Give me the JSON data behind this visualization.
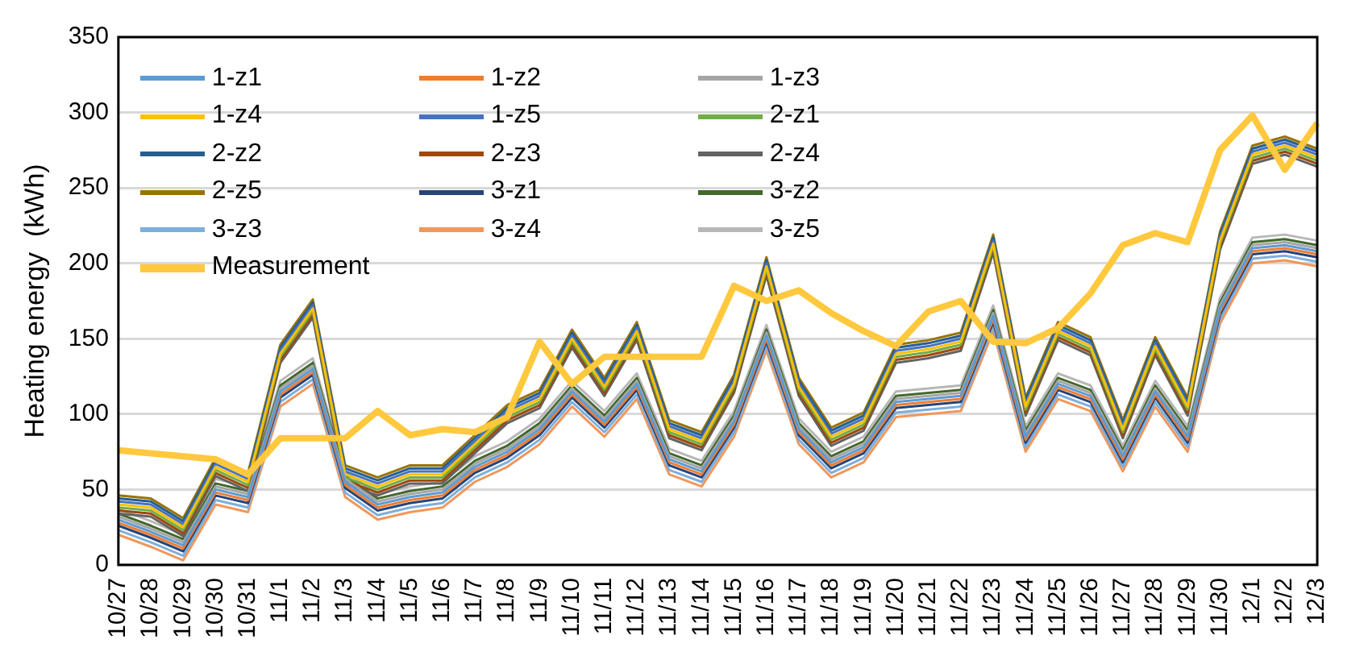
{
  "chart_data": {
    "type": "line",
    "ylabel": "Heating energy  (kWh)",
    "categories": [
      "10/27",
      "10/28",
      "10/29",
      "10/30",
      "10/31",
      "11/1",
      "11/2",
      "11/3",
      "11/4",
      "11/5",
      "11/6",
      "11/7",
      "11/8",
      "11/9",
      "11/10",
      "11/11",
      "11/12",
      "11/13",
      "11/14",
      "11/15",
      "11/16",
      "11/17",
      "11/18",
      "11/19",
      "11/20",
      "11/21",
      "11/22",
      "11/23",
      "11/24",
      "11/25",
      "11/26",
      "11/27",
      "11/28",
      "11/29",
      "11/30",
      "12/1",
      "12/2",
      "12/3"
    ],
    "series": [
      {
        "name": "1-z1",
        "color": "#5b9bd5",
        "values": [
          30,
          22,
          13,
          50,
          45,
          115,
          130,
          55,
          40,
          45,
          48,
          65,
          75,
          90,
          115,
          95,
          120,
          70,
          62,
          95,
          152,
          90,
          68,
          78,
          108,
          110,
          112,
          165,
          85,
          120,
          112,
          72,
          115,
          85,
          170,
          210,
          212,
          208
        ]
      },
      {
        "name": "1-z2",
        "color": "#ed7d31",
        "values": [
          28,
          20,
          11,
          48,
          43,
          113,
          128,
          53,
          38,
          43,
          46,
          63,
          73,
          88,
          113,
          93,
          118,
          68,
          60,
          93,
          150,
          88,
          66,
          76,
          106,
          108,
          110,
          163,
          83,
          118,
          110,
          70,
          113,
          83,
          168,
          208,
          210,
          206
        ]
      },
      {
        "name": "1-z3",
        "color": "#a5a5a5",
        "values": [
          32,
          24,
          15,
          52,
          47,
          117,
          132,
          57,
          42,
          47,
          50,
          67,
          77,
          92,
          117,
          97,
          122,
          72,
          64,
          97,
          154,
          92,
          70,
          80,
          110,
          112,
          114,
          167,
          87,
          122,
          114,
          74,
          117,
          87,
          172,
          212,
          214,
          210
        ]
      },
      {
        "name": "1-z4",
        "color": "#ffc000",
        "values": [
          40,
          38,
          25,
          65,
          55,
          140,
          170,
          60,
          52,
          60,
          60,
          80,
          100,
          110,
          150,
          118,
          155,
          90,
          82,
          120,
          198,
          118,
          85,
          95,
          140,
          143,
          148,
          213,
          105,
          155,
          145,
          90,
          145,
          105,
          215,
          272,
          278,
          270
        ]
      },
      {
        "name": "1-z5",
        "color": "#4472c4",
        "values": [
          42,
          40,
          27,
          67,
          57,
          142,
          172,
          62,
          54,
          62,
          62,
          82,
          102,
          112,
          152,
          120,
          157,
          92,
          84,
          122,
          200,
          120,
          87,
          97,
          142,
          145,
          150,
          215,
          107,
          157,
          147,
          92,
          147,
          107,
          217,
          274,
          280,
          272
        ]
      },
      {
        "name": "2-z1",
        "color": "#70ad47",
        "values": [
          38,
          36,
          23,
          63,
          53,
          138,
          168,
          58,
          50,
          58,
          58,
          78,
          98,
          108,
          148,
          116,
          153,
          88,
          80,
          118,
          196,
          116,
          83,
          93,
          138,
          141,
          146,
          211,
          103,
          153,
          143,
          88,
          143,
          103,
          213,
          270,
          276,
          268
        ]
      },
      {
        "name": "2-z2",
        "color": "#255e91",
        "values": [
          44,
          42,
          29,
          69,
          59,
          144,
          174,
          64,
          56,
          64,
          64,
          84,
          104,
          114,
          154,
          122,
          159,
          94,
          86,
          124,
          202,
          122,
          89,
          99,
          144,
          147,
          152,
          217,
          109,
          159,
          149,
          94,
          149,
          109,
          219,
          276,
          282,
          274
        ]
      },
      {
        "name": "2-z3",
        "color": "#9e480e",
        "values": [
          36,
          34,
          21,
          61,
          51,
          136,
          166,
          56,
          48,
          56,
          56,
          76,
          96,
          106,
          146,
          114,
          151,
          86,
          78,
          116,
          194,
          114,
          81,
          91,
          136,
          139,
          144,
          209,
          101,
          151,
          141,
          86,
          141,
          101,
          211,
          268,
          274,
          266
        ]
      },
      {
        "name": "2-z4",
        "color": "#636363",
        "values": [
          34,
          32,
          19,
          59,
          49,
          134,
          164,
          54,
          46,
          54,
          54,
          74,
          94,
          104,
          144,
          112,
          149,
          84,
          76,
          114,
          192,
          112,
          79,
          89,
          134,
          137,
          142,
          207,
          99,
          149,
          139,
          84,
          139,
          99,
          209,
          266,
          272,
          264
        ]
      },
      {
        "name": "2-z5",
        "color": "#997300",
        "values": [
          46,
          44,
          31,
          71,
          61,
          146,
          176,
          66,
          58,
          66,
          66,
          86,
          106,
          116,
          156,
          124,
          161,
          96,
          88,
          126,
          204,
          124,
          91,
          101,
          146,
          149,
          154,
          219,
          111,
          161,
          151,
          96,
          151,
          111,
          221,
          278,
          284,
          276
        ]
      },
      {
        "name": "3-z1",
        "color": "#264478",
        "values": [
          26,
          18,
          9,
          46,
          41,
          111,
          126,
          51,
          36,
          41,
          44,
          61,
          71,
          86,
          111,
          91,
          116,
          66,
          58,
          91,
          148,
          86,
          64,
          74,
          104,
          106,
          108,
          161,
          81,
          116,
          108,
          68,
          111,
          81,
          166,
          206,
          208,
          204
        ]
      },
      {
        "name": "3-z2",
        "color": "#43682b",
        "values": [
          34,
          26,
          17,
          54,
          49,
          119,
          134,
          59,
          44,
          49,
          52,
          69,
          79,
          94,
          119,
          99,
          124,
          74,
          66,
          99,
          156,
          94,
          72,
          82,
          112,
          114,
          116,
          169,
          89,
          124,
          116,
          76,
          119,
          89,
          174,
          214,
          216,
          212
        ]
      },
      {
        "name": "3-z3",
        "color": "#7cafdd",
        "values": [
          23,
          15,
          6,
          43,
          38,
          108,
          123,
          48,
          33,
          38,
          41,
          58,
          68,
          83,
          108,
          88,
          113,
          63,
          55,
          88,
          145,
          83,
          61,
          71,
          101,
          103,
          105,
          158,
          78,
          113,
          105,
          65,
          108,
          78,
          163,
          203,
          205,
          201
        ]
      },
      {
        "name": "3-z4",
        "color": "#f1975a",
        "values": [
          20,
          12,
          3,
          40,
          35,
          105,
          120,
          45,
          30,
          35,
          38,
          55,
          65,
          80,
          105,
          85,
          110,
          60,
          52,
          85,
          142,
          80,
          58,
          68,
          98,
          100,
          102,
          155,
          75,
          110,
          102,
          62,
          105,
          75,
          160,
          200,
          202,
          198
        ]
      },
      {
        "name": "3-z5",
        "color": "#b7b7b7",
        "values": [
          37,
          29,
          20,
          57,
          52,
          122,
          137,
          62,
          47,
          52,
          55,
          72,
          82,
          97,
          122,
          102,
          127,
          77,
          69,
          102,
          159,
          97,
          75,
          85,
          115,
          117,
          119,
          172,
          92,
          127,
          119,
          79,
          122,
          92,
          177,
          217,
          219,
          215
        ]
      },
      {
        "name": "Measurement",
        "color": "#ffc83d",
        "values": [
          76,
          74,
          72,
          70,
          60,
          84,
          84,
          84,
          102,
          86,
          90,
          88,
          98,
          148,
          120,
          138,
          138,
          138,
          138,
          185,
          175,
          182,
          167,
          155,
          145,
          168,
          175,
          148,
          147,
          157,
          180,
          212,
          220,
          214,
          275,
          298,
          262,
          293
        ]
      }
    ],
    "ylim": [
      0,
      350
    ],
    "yticks": [
      0,
      50,
      100,
      150,
      200,
      250,
      300,
      350
    ],
    "grid": "y",
    "legend": "top left",
    "marker": "none",
    "line_style": "solid"
  }
}
